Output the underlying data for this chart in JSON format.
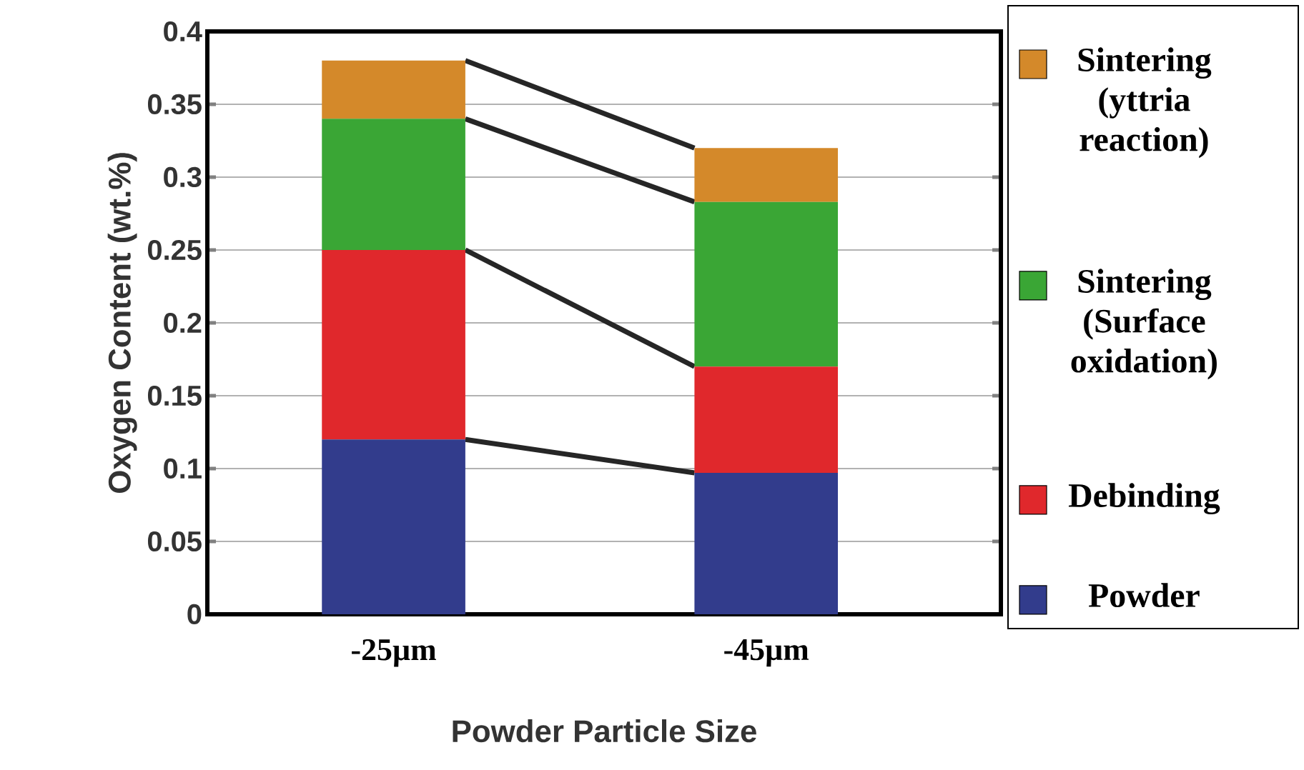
{
  "chart_data": {
    "type": "bar",
    "stacked": true,
    "xlabel": "Powder Particle Size",
    "ylabel": "Oxygen Content (wt.%)",
    "categories": [
      "-25µm",
      "-45µm"
    ],
    "series": [
      {
        "name": "Powder",
        "color": "#323c8c",
        "values": [
          0.12,
          0.097
        ]
      },
      {
        "name": "Debinding",
        "color": "#e0282c",
        "values": [
          0.13,
          0.073
        ]
      },
      {
        "name": "Sintering (Surface oxidation)",
        "color": "#3aa635",
        "values": [
          0.09,
          0.113
        ]
      },
      {
        "name": "Sintering (yttria reaction)",
        "color": "#d4892a",
        "values": [
          0.04,
          0.037
        ]
      }
    ],
    "ylim": [
      0,
      0.4
    ],
    "yticks": [
      0,
      0.05,
      0.1,
      0.15,
      0.2,
      0.25,
      0.3,
      0.35,
      0.4
    ],
    "grid": "y",
    "legend": "right"
  }
}
